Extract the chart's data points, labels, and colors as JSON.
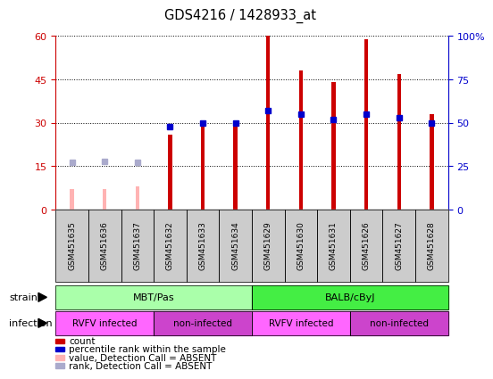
{
  "title": "GDS4216 / 1428933_at",
  "samples": [
    "GSM451635",
    "GSM451636",
    "GSM451637",
    "GSM451632",
    "GSM451633",
    "GSM451634",
    "GSM451629",
    "GSM451630",
    "GSM451631",
    "GSM451626",
    "GSM451627",
    "GSM451628"
  ],
  "count_values": [
    null,
    null,
    null,
    26,
    29,
    29,
    60,
    48,
    44,
    59,
    47,
    33
  ],
  "count_absent": [
    7,
    7,
    8,
    null,
    null,
    null,
    null,
    null,
    null,
    null,
    null,
    null
  ],
  "rank_values": [
    null,
    null,
    null,
    48,
    50,
    50,
    57,
    55,
    52,
    55,
    53,
    50
  ],
  "rank_absent": [
    27,
    28,
    27,
    null,
    null,
    null,
    null,
    null,
    null,
    null,
    null,
    null
  ],
  "ylim_left": [
    0,
    60
  ],
  "ylim_right": [
    0,
    100
  ],
  "yticks_left": [
    0,
    15,
    30,
    45,
    60
  ],
  "yticks_right": [
    0,
    25,
    50,
    75,
    100
  ],
  "ytick_labels_right": [
    "0",
    "25",
    "50",
    "75",
    "100%"
  ],
  "bar_color": "#cc0000",
  "bar_absent_color": "#ffb3b3",
  "rank_color": "#0000cc",
  "rank_absent_color": "#aaaacc",
  "strain_groups": [
    {
      "label": "MBT/Pas",
      "start": 0,
      "end": 6,
      "color": "#aaffaa"
    },
    {
      "label": "BALB/cByJ",
      "start": 6,
      "end": 12,
      "color": "#44ee44"
    }
  ],
  "infection_groups": [
    {
      "label": "RVFV infected",
      "start": 0,
      "end": 3,
      "color": "#ff66ff"
    },
    {
      "label": "non-infected",
      "start": 3,
      "end": 6,
      "color": "#cc44cc"
    },
    {
      "label": "RVFV infected",
      "start": 6,
      "end": 9,
      "color": "#ff66ff"
    },
    {
      "label": "non-infected",
      "start": 9,
      "end": 12,
      "color": "#cc44cc"
    }
  ],
  "legend_items": [
    {
      "label": "count",
      "color": "#cc0000"
    },
    {
      "label": "percentile rank within the sample",
      "color": "#0000cc"
    },
    {
      "label": "value, Detection Call = ABSENT",
      "color": "#ffb3b3"
    },
    {
      "label": "rank, Detection Call = ABSENT",
      "color": "#aaaacc"
    }
  ]
}
